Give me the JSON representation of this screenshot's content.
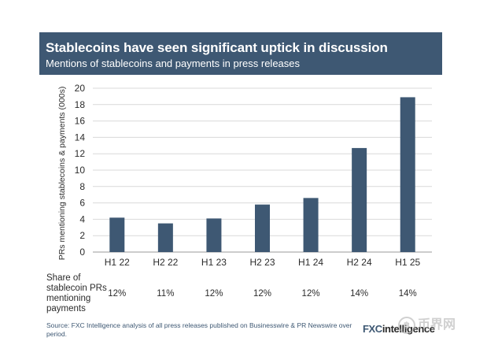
{
  "header": {
    "title": "Stablecoins have seen significant uptick in discussion",
    "subtitle": "Mentions of stablecoins and payments in press releases"
  },
  "colors": {
    "bar": "#3e5873",
    "header_bg": "#3e5873",
    "grid": "#d9d9d9"
  },
  "chart_data": {
    "type": "bar",
    "title": "Stablecoins have seen significant uptick in discussion",
    "subtitle": "Mentions of stablecoins and payments in press releases",
    "ylabel": "PRs mentioning stablecoins & payments (000s)",
    "xlabel": "",
    "ylim": [
      0,
      20
    ],
    "yticks": [
      0,
      2,
      4,
      6,
      8,
      10,
      12,
      14,
      16,
      18,
      20
    ],
    "grid": true,
    "categories": [
      "H1 22",
      "H2 22",
      "H1 23",
      "H2 23",
      "H1 24",
      "H2 24",
      "H1 25"
    ],
    "values": [
      4.2,
      3.5,
      4.1,
      5.8,
      6.6,
      12.7,
      18.9
    ]
  },
  "share": {
    "label": "Share of stablecoin PRs mentioning payments",
    "values": [
      "12%",
      "11%",
      "12%",
      "12%",
      "12%",
      "14%",
      "14%"
    ]
  },
  "footer": {
    "source": "Source: FXC Intelligence analysis of all press releases published on Businesswire & PR Newswire over period.",
    "logo_fx": "FXC",
    "logo_rest": "intelligence",
    "watermark": "币界网",
    "watermark_icon": "b-coin-icon"
  }
}
